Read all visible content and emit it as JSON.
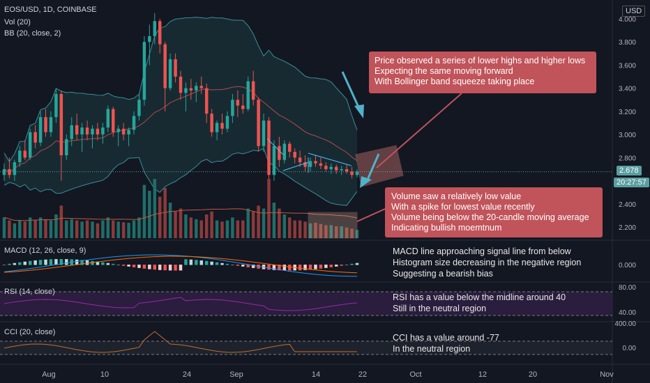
{
  "header": {
    "symbol": "EOS/USD, 1D, COINBASE",
    "vol": "Vol (20)",
    "bb": "BB (20, close, 2)",
    "macd": "MACD (12, 26, close, 9)",
    "rsi": "RSI (14, close)",
    "cci": "CCI (20, close)",
    "currency": "USD"
  },
  "price_tag": {
    "price": "2.678",
    "countdown": "20:27:57"
  },
  "annotations": {
    "price": [
      "Price observed a series of lower highs and higher lows",
      "Expecting the same moving forward",
      "With Bollinger band squeeze taking place"
    ],
    "volume": [
      "Volume saw a relatively low value",
      "With a spike for lowest value recently",
      "Volume being below the 20-candle moving average",
      "Indicating bullish moemtnum"
    ],
    "macd": [
      "MACD line approaching signal line from below",
      "Histogram size decreasing in the negative region",
      "Suggesting a bearish bias"
    ],
    "rsi": [
      "RSI has a value below the midline around 40",
      "Still in the neutral region"
    ],
    "cci": [
      "CCI has a value around -77",
      "In the neutral region"
    ]
  },
  "axes": {
    "x_ticks": [
      "Aug",
      "10",
      "24",
      "Sep",
      "14",
      "22",
      "Oct",
      "12",
      "20",
      "Nov"
    ],
    "price_ticks": [
      "4.000",
      "3.800",
      "3.600",
      "3.400",
      "3.200",
      "3.000",
      "2.800",
      "2.400",
      "2.200"
    ],
    "macd_ticks": [
      "0.000"
    ],
    "rsi_ticks": [
      "80.00",
      "40.00"
    ],
    "cci_ticks": [
      "400.00",
      "0.00"
    ]
  },
  "colors": {
    "bg": "#131722",
    "up": "#26a69a",
    "down": "#ef5350",
    "ann_box": "#c0545a",
    "bb_fill": "#1b3a3f",
    "rsi_fill": "#2a1d3d",
    "rsi_line": "#9c27b0",
    "cci_line": "#c0702b",
    "macd_line": "#2196f3",
    "signal_line": "#ff6d00"
  },
  "chart_data": {
    "type": "candlestick",
    "symbol": "EOS/USD",
    "y_range": [
      2.1,
      4.05
    ],
    "candles": [
      [
        2.65,
        2.75,
        2.6,
        2.7
      ],
      [
        2.7,
        2.8,
        2.62,
        2.65
      ],
      [
        2.65,
        2.78,
        2.6,
        2.76
      ],
      [
        2.76,
        2.9,
        2.72,
        2.86
      ],
      [
        2.86,
        2.95,
        2.78,
        2.8
      ],
      [
        2.8,
        3.05,
        2.78,
        3.02
      ],
      [
        3.02,
        3.08,
        2.88,
        2.93
      ],
      [
        2.93,
        3.2,
        2.9,
        3.15
      ],
      [
        3.15,
        3.22,
        2.98,
        3.02
      ],
      [
        3.02,
        3.2,
        2.98,
        3.15
      ],
      [
        3.15,
        3.4,
        3.1,
        3.35
      ],
      [
        3.35,
        3.38,
        2.6,
        2.82
      ],
      [
        2.82,
        3.0,
        2.78,
        2.96
      ],
      [
        2.96,
        3.15,
        2.9,
        3.08
      ],
      [
        3.08,
        3.18,
        2.95,
        3.0
      ],
      [
        3.0,
        3.1,
        2.85,
        3.06
      ],
      [
        3.06,
        3.12,
        2.95,
        3.0
      ],
      [
        3.0,
        3.08,
        2.88,
        3.05
      ],
      [
        3.05,
        3.1,
        2.95,
        3.0
      ],
      [
        3.0,
        3.1,
        2.92,
        3.06
      ],
      [
        3.06,
        3.25,
        3.02,
        3.22
      ],
      [
        3.22,
        3.24,
        2.98,
        3.02
      ],
      [
        3.02,
        3.08,
        2.9,
        3.05
      ],
      [
        3.05,
        3.1,
        2.95,
        3.0
      ],
      [
        3.0,
        3.06,
        2.9,
        3.04
      ],
      [
        3.04,
        3.2,
        3.0,
        3.16
      ],
      [
        3.16,
        3.35,
        3.12,
        3.3
      ],
      [
        3.3,
        3.85,
        3.25,
        3.8
      ],
      [
        3.8,
        3.95,
        3.6,
        3.85
      ],
      [
        3.85,
        4.05,
        3.78,
        3.98
      ],
      [
        3.98,
        4.0,
        3.7,
        3.78
      ],
      [
        3.78,
        3.8,
        3.2,
        3.4
      ],
      [
        3.4,
        3.7,
        3.38,
        3.65
      ],
      [
        3.65,
        3.7,
        3.45,
        3.5
      ],
      [
        3.5,
        3.55,
        3.3,
        3.36
      ],
      [
        3.36,
        3.45,
        3.2,
        3.4
      ],
      [
        3.4,
        3.48,
        3.3,
        3.38
      ],
      [
        3.38,
        3.45,
        3.28,
        3.42
      ],
      [
        3.42,
        3.5,
        3.35,
        3.4
      ],
      [
        3.4,
        3.44,
        3.1,
        3.18
      ],
      [
        3.18,
        3.22,
        2.98,
        3.02
      ],
      [
        3.02,
        3.12,
        2.95,
        3.1
      ],
      [
        3.1,
        3.18,
        3.0,
        3.05
      ],
      [
        3.05,
        3.2,
        3.02,
        3.16
      ],
      [
        3.16,
        3.35,
        3.1,
        3.3
      ],
      [
        3.3,
        3.38,
        3.15,
        3.25
      ],
      [
        3.25,
        3.35,
        3.18,
        3.22
      ],
      [
        3.22,
        3.5,
        3.2,
        3.46
      ],
      [
        3.46,
        3.55,
        3.25,
        3.3
      ],
      [
        3.3,
        3.32,
        2.85,
        2.9
      ],
      [
        2.9,
        3.18,
        2.85,
        3.12
      ],
      [
        3.12,
        3.15,
        2.55,
        2.65
      ],
      [
        2.65,
        2.95,
        2.6,
        2.9
      ],
      [
        2.9,
        2.98,
        2.72,
        2.78
      ],
      [
        2.78,
        2.95,
        2.75,
        2.92
      ],
      [
        2.92,
        2.94,
        2.8,
        2.85
      ],
      [
        2.85,
        2.88,
        2.75,
        2.8
      ],
      [
        2.8,
        2.86,
        2.72,
        2.76
      ],
      [
        2.76,
        2.82,
        2.68,
        2.72
      ],
      [
        2.72,
        2.8,
        2.68,
        2.77
      ],
      [
        2.77,
        2.82,
        2.72,
        2.75
      ],
      [
        2.75,
        2.8,
        2.7,
        2.73
      ],
      [
        2.73,
        2.76,
        2.68,
        2.7
      ],
      [
        2.7,
        2.75,
        2.66,
        2.72
      ],
      [
        2.72,
        2.74,
        2.66,
        2.69
      ],
      [
        2.69,
        2.73,
        2.65,
        2.7
      ],
      [
        2.7,
        2.74,
        2.66,
        2.68
      ],
      [
        2.68,
        2.72,
        2.62,
        2.65
      ],
      [
        2.65,
        2.7,
        2.63,
        2.68
      ]
    ],
    "volume": [
      0.35,
      0.3,
      0.25,
      0.3,
      0.28,
      0.35,
      0.3,
      0.35,
      0.32,
      0.3,
      0.4,
      0.55,
      0.3,
      0.32,
      0.3,
      0.28,
      0.3,
      0.28,
      0.25,
      0.3,
      0.35,
      0.3,
      0.28,
      0.27,
      0.26,
      0.3,
      0.35,
      0.9,
      0.8,
      1.0,
      0.7,
      0.85,
      0.6,
      0.45,
      0.5,
      0.4,
      0.35,
      0.32,
      0.3,
      0.4,
      0.45,
      0.3,
      0.28,
      0.3,
      0.35,
      0.3,
      0.3,
      0.5,
      0.45,
      0.55,
      0.5,
      1.0,
      0.6,
      0.5,
      0.4,
      0.35,
      0.3,
      0.3,
      0.28,
      0.25,
      0.26,
      0.24,
      0.22,
      0.22,
      0.2,
      0.2,
      0.18,
      0.16,
      0.14
    ],
    "rsi": {
      "last": 40,
      "levels": [
        70,
        30
      ]
    },
    "cci": {
      "last": -77,
      "levels": [
        100,
        -100
      ]
    }
  }
}
